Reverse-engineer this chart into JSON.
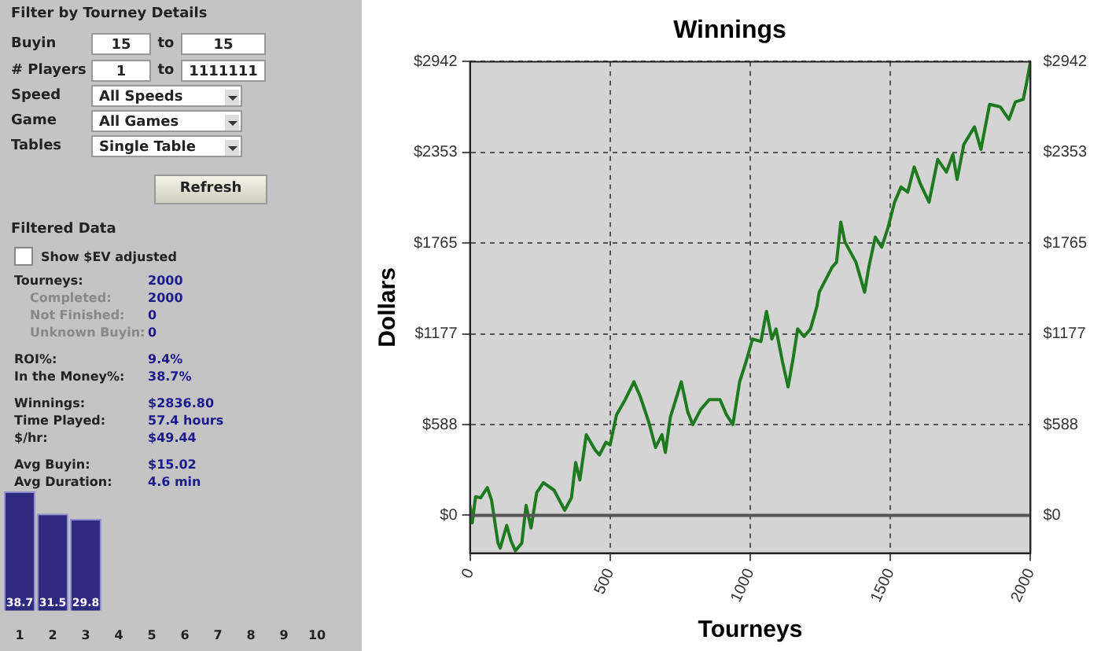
{
  "chart_data": [
    {
      "type": "line",
      "title": "Winnings",
      "xlabel": "Tourneys",
      "ylabel": "Dollars",
      "xlim": [
        0,
        2000
      ],
      "xticks": [
        0,
        500,
        1000,
        1500,
        2000
      ],
      "ylim": [
        -245,
        2942
      ],
      "yticks": [
        {
          "value": 0,
          "label": "$0"
        },
        {
          "value": 588,
          "label": "$588"
        },
        {
          "value": 1177,
          "label": "$1177"
        },
        {
          "value": 1765,
          "label": "$1765"
        },
        {
          "value": 2353,
          "label": "$2353"
        },
        {
          "value": 2942,
          "label": "$2942"
        }
      ],
      "y2lim": [
        -245,
        2942
      ],
      "y2ticks": [
        {
          "value": 0,
          "label": "$0"
        },
        {
          "value": 588,
          "label": "$588"
        },
        {
          "value": 1177,
          "label": "$1177"
        },
        {
          "value": 1765,
          "label": "$1765"
        },
        {
          "value": 2353,
          "label": "$2353"
        },
        {
          "value": 2942,
          "label": "$2942"
        }
      ],
      "grid": true,
      "legend": false,
      "line_style": "solid",
      "ref_lines": [
        {
          "axis": "y",
          "value": 0,
          "color": "#555555",
          "line_style": "solid"
        }
      ],
      "series": [
        {
          "color": "#1e7a1e",
          "x": [
            0,
            8,
            20,
            38,
            62,
            77,
            100,
            108,
            131,
            146,
            162,
            185,
            200,
            218,
            238,
            262,
            300,
            338,
            362,
            377,
            392,
            415,
            446,
            462,
            485,
            500,
            523,
            554,
            585,
            608,
            638,
            662,
            685,
            697,
            715,
            754,
            777,
            795,
            823,
            854,
            892,
            915,
            938,
            962,
            985,
            1008,
            1038,
            1058,
            1077,
            1092,
            1115,
            1135,
            1154,
            1169,
            1192,
            1215,
            1238,
            1246,
            1292,
            1308,
            1323,
            1338,
            1377,
            1408,
            1423,
            1446,
            1469,
            1492,
            1515,
            1538,
            1562,
            1585,
            1608,
            1638,
            1669,
            1700,
            1723,
            1738,
            1762,
            1800,
            1823,
            1854,
            1892,
            1923,
            1946,
            1974,
            1985,
            2000
          ],
          "values": [
            65,
            -49,
            121,
            114,
            180,
            98,
            -180,
            -212,
            -65,
            -163,
            -230,
            -180,
            65,
            -82,
            147,
            212,
            163,
            33,
            114,
            343,
            229,
            523,
            425,
            392,
            474,
            457,
            653,
            751,
            866,
            768,
            604,
            441,
            523,
            408,
            637,
            866,
            670,
            588,
            686,
            751,
            751,
            653,
            588,
            866,
            996,
            1143,
            1127,
            1323,
            1143,
            1209,
            996,
            833,
            1029,
            1209,
            1160,
            1209,
            1356,
            1447,
            1609,
            1642,
            1902,
            1772,
            1642,
            1447,
            1609,
            1804,
            1739,
            1869,
            2031,
            2129,
            2096,
            2259,
            2145,
            2031,
            2308,
            2226,
            2340,
            2178,
            2405,
            2519,
            2373,
            2665,
            2649,
            2567,
            2681,
            2697,
            2795,
            2942
          ]
        }
      ]
    },
    {
      "type": "other",
      "title": "Filter by Tourney Details",
      "annotations": [
        "Buyin",
        "15",
        "to",
        "15",
        "# Players",
        "1",
        "to",
        "1111111",
        "Speed",
        "All Speeds",
        "Game",
        "All Games",
        "Tables",
        "Single Table",
        "Refresh"
      ]
    },
    {
      "type": "other",
      "title": "Filtered Data",
      "annotations": [
        "Show $EV adjusted",
        "Tourneys:",
        "2000",
        "Completed:",
        "2000",
        "Not Finished:",
        "0",
        "Unknown Buyin:",
        "0",
        "ROI%:",
        "9.4%",
        "In the Money%:",
        "38.7%",
        "Winnings:",
        "$2836.80",
        "Time Played:",
        "57.4 hours",
        "$/hr:",
        "$49.44",
        "Avg Buyin:",
        "$15.02",
        "Avg Duration:",
        "4.6 min"
      ]
    },
    {
      "type": "bar",
      "categories": [
        "1",
        "2",
        "3",
        "4",
        "5",
        "6",
        "7",
        "8",
        "9",
        "10"
      ],
      "values": [
        38.7,
        31.5,
        29.8,
        null,
        null,
        null,
        null,
        null,
        null,
        null
      ],
      "color": "#2e2a80",
      "data_labels": true,
      "tick_labels": "x",
      "grid": false,
      "legend": false
    }
  ]
}
